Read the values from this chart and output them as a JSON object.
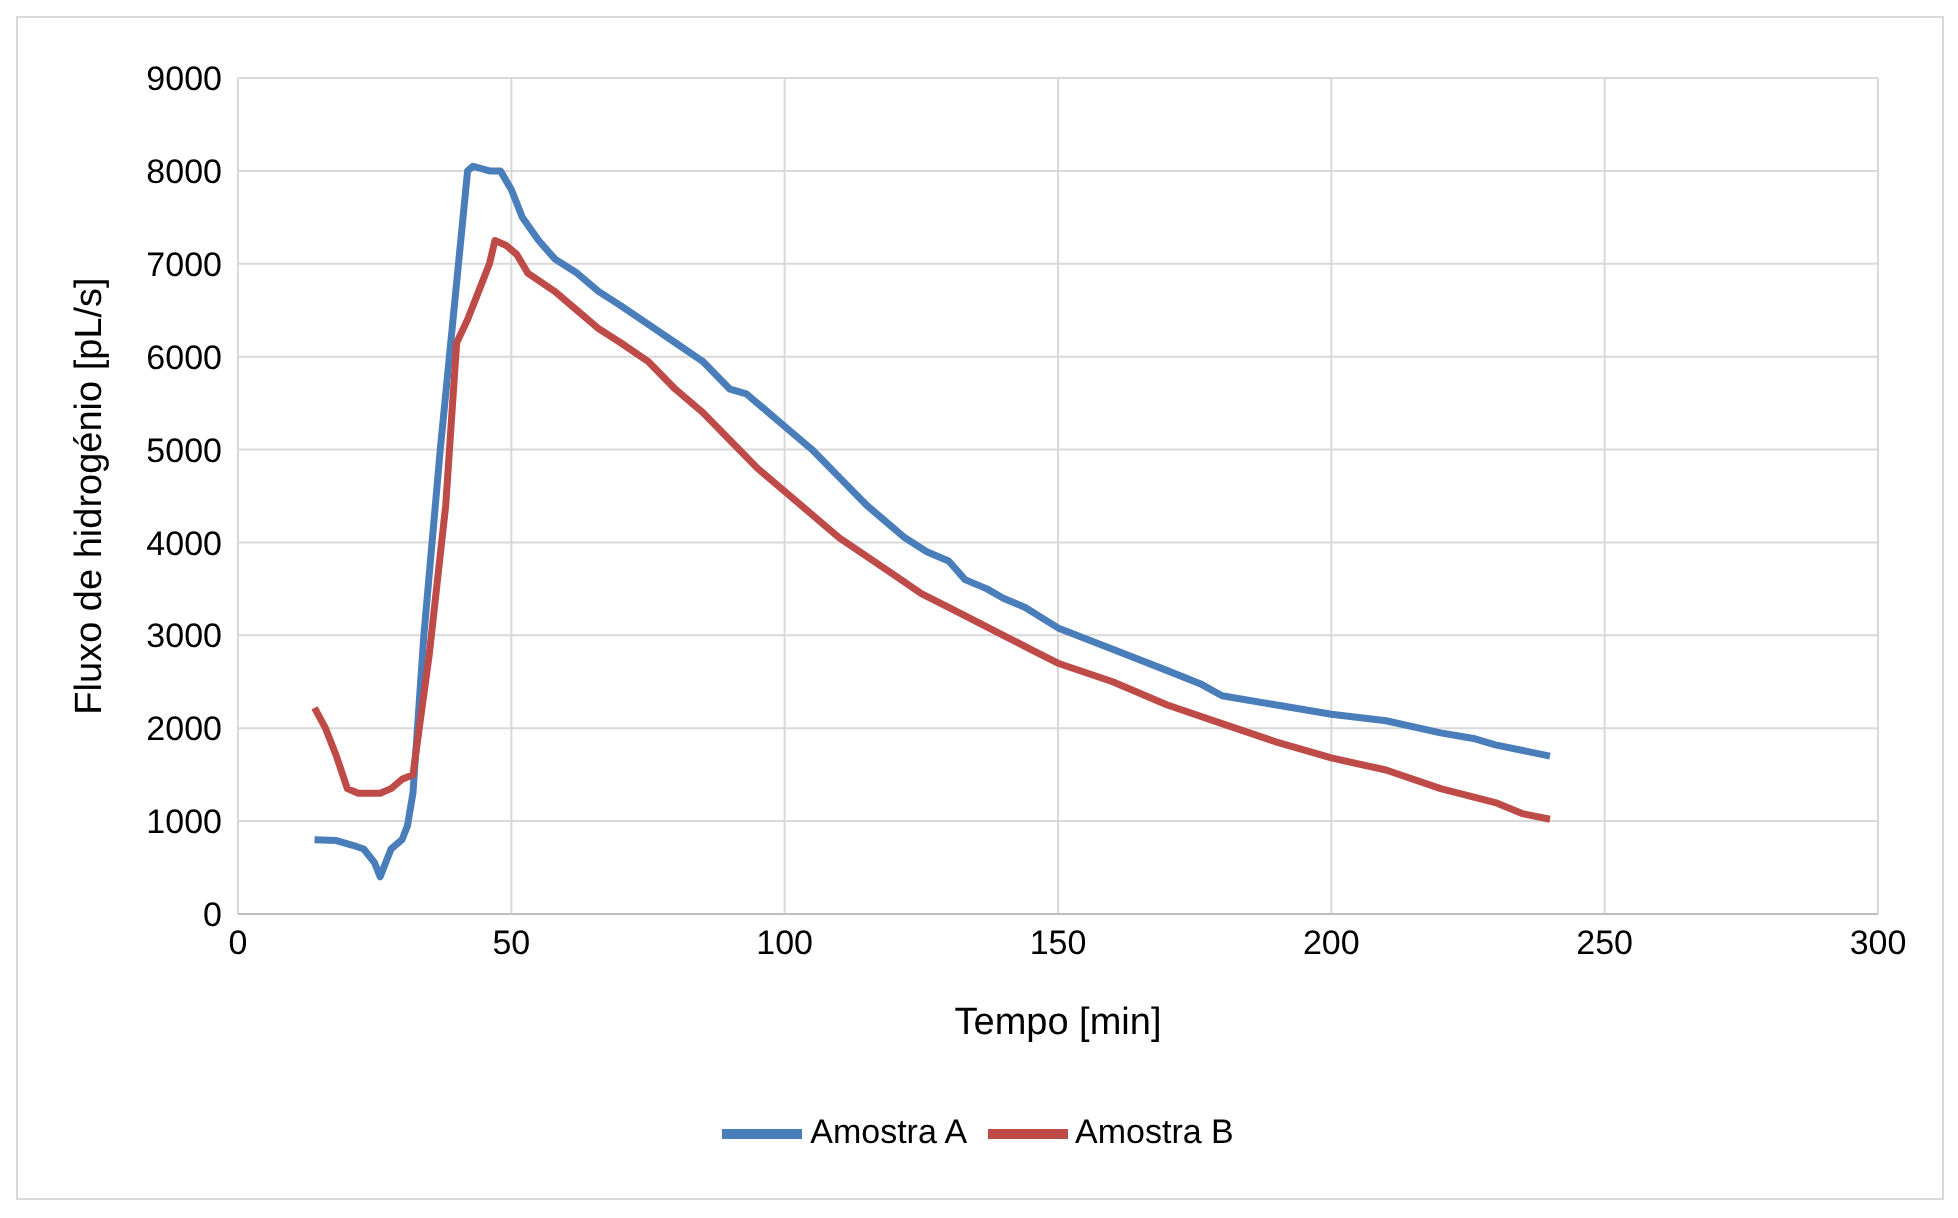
{
  "chart_data": {
    "type": "line",
    "xlabel": "Tempo [min]",
    "ylabel": "Fluxo de hidrogénio [pL/s]",
    "xlim": [
      0,
      300
    ],
    "xticks": [
      0,
      50,
      100,
      150,
      200,
      250,
      300
    ],
    "ylim": [
      0,
      9000
    ],
    "yticks": [
      0,
      1000,
      2000,
      3000,
      4000,
      5000,
      6000,
      7000,
      8000,
      9000
    ],
    "grid": true,
    "legend": "bottom",
    "marker": "none",
    "line_style": "solid",
    "series": [
      {
        "name": "Amostra A",
        "color": "#4a7ebb",
        "x": [
          14,
          18,
          21,
          23,
          25,
          26,
          28,
          30,
          31,
          32,
          34,
          37,
          40,
          42,
          43,
          46,
          48,
          50,
          52,
          55,
          58,
          62,
          66,
          70,
          75,
          80,
          85,
          90,
          93,
          96,
          100,
          105,
          110,
          115,
          118,
          122,
          126,
          130,
          133,
          137,
          140,
          144,
          150,
          160,
          170,
          176,
          180,
          190,
          200,
          210,
          220,
          226,
          230,
          240
        ],
        "values": [
          800,
          790,
          740,
          700,
          550,
          400,
          700,
          800,
          950,
          1300,
          3000,
          5000,
          6800,
          8000,
          8050,
          8000,
          8000,
          7800,
          7500,
          7250,
          7050,
          6900,
          6700,
          6550,
          6350,
          6150,
          5950,
          5650,
          5600,
          5450,
          5250,
          5000,
          4700,
          4400,
          4250,
          4050,
          3900,
          3800,
          3600,
          3500,
          3400,
          3300,
          3080,
          2850,
          2620,
          2480,
          2350,
          2250,
          2150,
          2080,
          1950,
          1890,
          1820,
          1700
        ]
      },
      {
        "name": "Amostra B",
        "color": "#be4b48",
        "x": [
          14,
          16,
          18,
          20,
          22,
          26,
          28,
          30,
          32,
          35,
          38,
          40,
          42,
          44,
          46,
          47,
          49,
          51,
          53,
          58,
          62,
          66,
          70,
          75,
          80,
          85,
          90,
          95,
          100,
          105,
          110,
          115,
          120,
          125,
          130,
          135,
          140,
          145,
          150,
          160,
          170,
          180,
          190,
          200,
          210,
          220,
          230,
          235,
          240
        ],
        "values": [
          2220,
          2000,
          1700,
          1350,
          1300,
          1300,
          1350,
          1450,
          1500,
          2800,
          4400,
          6150,
          6400,
          6700,
          7000,
          7250,
          7200,
          7100,
          6900,
          6700,
          6500,
          6300,
          6150,
          5950,
          5650,
          5400,
          5100,
          4800,
          4550,
          4300,
          4050,
          3850,
          3650,
          3450,
          3300,
          3150,
          3000,
          2850,
          2700,
          2500,
          2250,
          2050,
          1850,
          1680,
          1550,
          1350,
          1200,
          1080,
          1020
        ]
      }
    ]
  }
}
